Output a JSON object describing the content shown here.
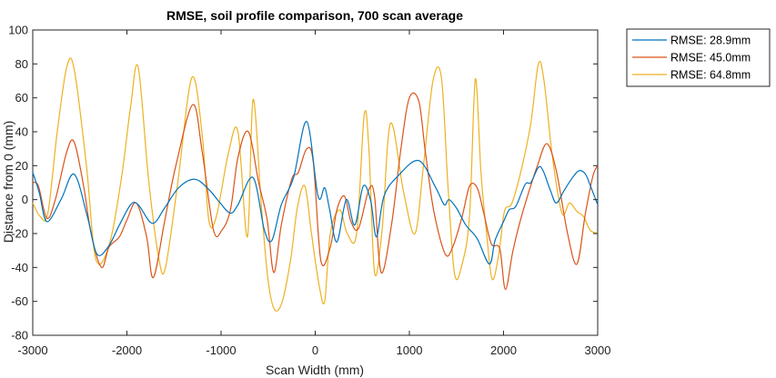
{
  "chart_data": {
    "type": "line",
    "title": "RMSE, soil profile comparison, 700 scan average",
    "xlabel": "Scan Width (mm)",
    "ylabel": "Distance from 0 (mm)",
    "xlim": [
      -3000,
      3000
    ],
    "ylim": [
      -80,
      100
    ],
    "xticks": [
      -3000,
      -2000,
      -1000,
      0,
      1000,
      2000,
      3000
    ],
    "yticks": [
      -80,
      -60,
      -40,
      -20,
      0,
      20,
      40,
      60,
      80,
      100
    ],
    "xtick_labels": [
      "-3000",
      "-2000",
      "-1000",
      "0",
      "1000",
      "2000",
      "3000"
    ],
    "ytick_labels": [
      "-80",
      "-60",
      "-40",
      "-20",
      "0",
      "20",
      "40",
      "60",
      "80",
      "100"
    ],
    "grid": false,
    "legend_position": "outside-top-right",
    "series": [
      {
        "name": "RMSE: 28.9mm",
        "color": "#0072BD",
        "x": [
          -3000,
          -2930,
          -2850,
          -2700,
          -2560,
          -2420,
          -2320,
          -2200,
          -2080,
          -1960,
          -1880,
          -1730,
          -1600,
          -1450,
          -1280,
          -1130,
          -1010,
          -900,
          -820,
          -660,
          -540,
          -460,
          -360,
          -230,
          -90,
          30,
          100,
          150,
          230,
          330,
          420,
          510,
          590,
          650,
          730,
          880,
          1100,
          1280,
          1370,
          1420,
          1500,
          1600,
          1720,
          1850,
          1910,
          2000,
          2060,
          2130,
          2230,
          2290,
          2370,
          2420,
          2500,
          2560,
          2640,
          2720,
          2800,
          2870,
          2930,
          3000
        ],
        "y": [
          16,
          4,
          -13,
          0,
          15,
          -10,
          -32,
          -28,
          -15,
          -3,
          -3,
          -14,
          -5,
          7,
          12,
          6,
          -2,
          -8,
          -3,
          13,
          -18,
          -24,
          -3,
          13,
          46,
          2,
          7,
          -5,
          -25,
          0,
          -15,
          8,
          -1,
          -22,
          2,
          14,
          23,
          7,
          -3,
          0,
          -5,
          -15,
          -23,
          -38,
          -24,
          -13,
          -6,
          -4,
          9,
          10,
          19,
          17,
          5,
          -2,
          5,
          12,
          17,
          15,
          7,
          -3
        ]
      },
      {
        "name": "RMSE: 45.0mm",
        "color": "#D95319",
        "x": [
          -3000,
          -2940,
          -2850,
          -2760,
          -2640,
          -2560,
          -2460,
          -2380,
          -2270,
          -2190,
          -2080,
          -2000,
          -1900,
          -1790,
          -1720,
          -1600,
          -1480,
          -1300,
          -1200,
          -1080,
          -990,
          -900,
          -820,
          -710,
          -600,
          -510,
          -440,
          -360,
          -250,
          -180,
          -90,
          -20,
          60,
          160,
          230,
          310,
          380,
          460,
          570,
          630,
          700,
          810,
          910,
          1000,
          1100,
          1170,
          1260,
          1380,
          1460,
          1560,
          1640,
          1720,
          1790,
          1870,
          1960,
          2020,
          2100,
          2190,
          2300,
          2360,
          2460,
          2560,
          2680,
          2780,
          2870,
          2950,
          3000
        ],
        "y": [
          10,
          8,
          -11,
          0,
          28,
          34,
          8,
          -20,
          -40,
          -28,
          -22,
          -12,
          -2,
          -22,
          -46,
          -13,
          20,
          56,
          28,
          -18,
          -18,
          -6,
          25,
          40,
          10,
          -12,
          -43,
          -15,
          12,
          16,
          30,
          22,
          -36,
          -28,
          -6,
          2,
          -13,
          -17,
          6,
          2,
          -43,
          -15,
          30,
          60,
          58,
          28,
          -7,
          -32,
          -28,
          -10,
          8,
          7,
          -8,
          -26,
          -29,
          -53,
          -30,
          -10,
          10,
          20,
          33,
          17,
          -20,
          -38,
          -8,
          14,
          20
        ]
      },
      {
        "name": "RMSE: 64.8mm",
        "color": "#EDB120",
        "x": [
          -3000,
          -2920,
          -2840,
          -2740,
          -2640,
          -2560,
          -2430,
          -2330,
          -2190,
          -2060,
          -1960,
          -1880,
          -1770,
          -1660,
          -1590,
          -1460,
          -1310,
          -1200,
          -1130,
          -1050,
          -920,
          -820,
          -720,
          -660,
          -570,
          -500,
          -430,
          -350,
          -260,
          -190,
          -110,
          -40,
          40,
          100,
          160,
          260,
          340,
          440,
          520,
          570,
          630,
          710,
          800,
          940,
          1060,
          1150,
          1250,
          1340,
          1410,
          1480,
          1560,
          1640,
          1700,
          1760,
          1820,
          1880,
          1950,
          2010,
          2090,
          2190,
          2290,
          2370,
          2430,
          2520,
          2620,
          2700,
          2780,
          2850,
          2920,
          3000
        ],
        "y": [
          -2,
          -10,
          -8,
          40,
          78,
          77,
          20,
          -35,
          -27,
          12,
          55,
          78,
          12,
          -35,
          -40,
          10,
          72,
          38,
          -12,
          -10,
          28,
          40,
          -22,
          59,
          -5,
          -48,
          -65,
          -60,
          -35,
          -5,
          8,
          -20,
          -50,
          -60,
          -20,
          -6,
          -20,
          -20,
          50,
          30,
          -43,
          -18,
          45,
          4,
          -20,
          20,
          70,
          72,
          8,
          -44,
          -38,
          -9,
          71,
          16,
          -20,
          -47,
          -32,
          -7,
          -2,
          18,
          45,
          80,
          70,
          25,
          -8,
          -2,
          -7,
          -10,
          -18,
          -20
        ]
      }
    ]
  }
}
